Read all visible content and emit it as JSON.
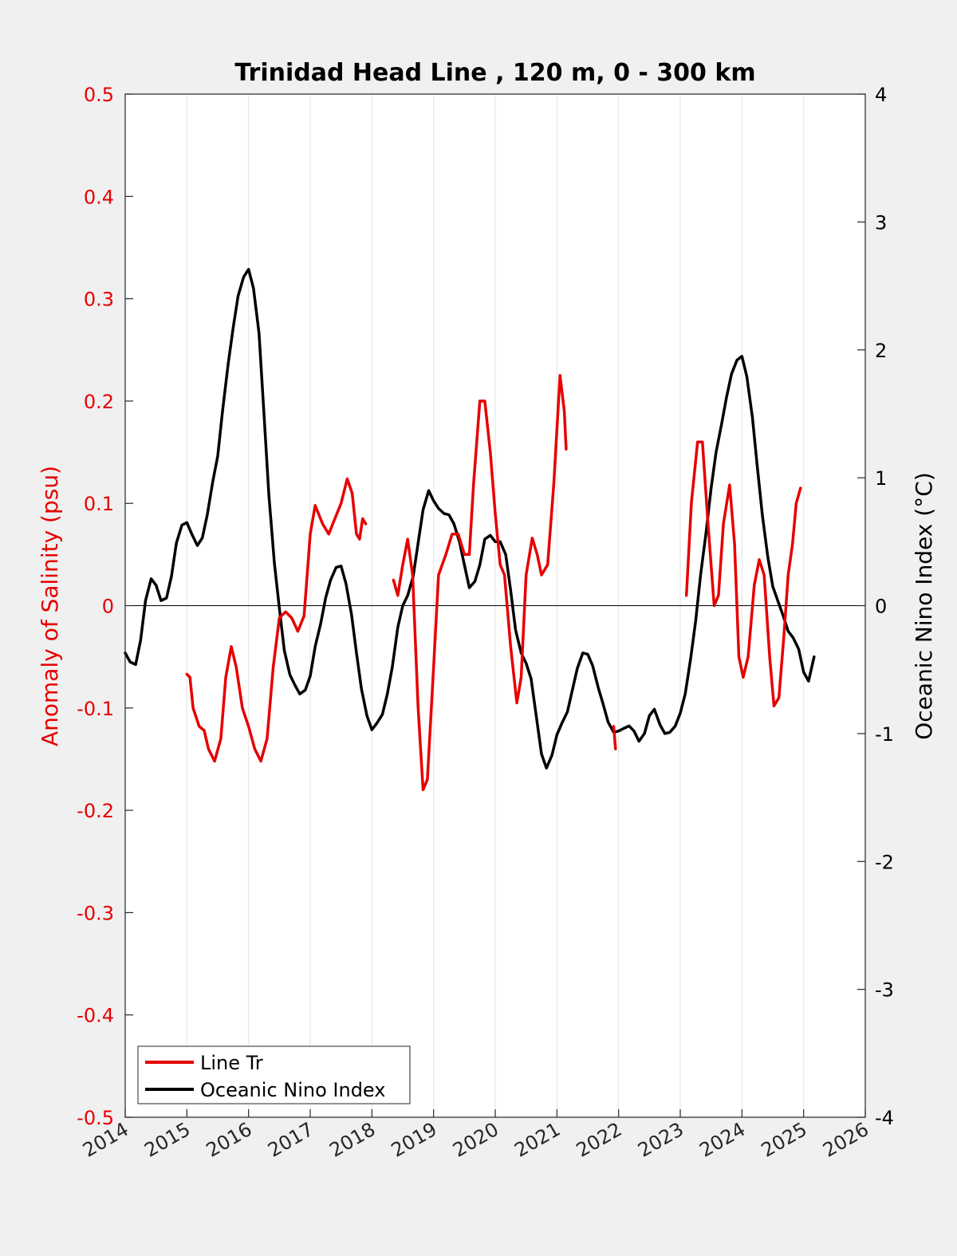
{
  "colors": {
    "salinity": "#e60000",
    "oni": "#000000",
    "left_axis": "#e60000",
    "right_axis": "#000000",
    "background": "#f0f0f0",
    "plot_bg": "#ffffff",
    "grid": "#e3e3e3"
  },
  "chart_data": {
    "type": "line",
    "title": "Trinidad Head Line , 120 m, 0 - 300 km",
    "xlabel": "",
    "ylabel_left": "Anomaly of Salinity (psu)",
    "ylabel_right": "Oceanic Nino Index (°C)",
    "xlim": [
      2014,
      2026
    ],
    "ylim_left": [
      -0.5,
      0.5
    ],
    "ylim_right": [
      -4,
      4
    ],
    "x_ticks": [
      "2014",
      "2015",
      "2016",
      "2017",
      "2018",
      "2019",
      "2020",
      "2021",
      "2022",
      "2023",
      "2024",
      "2025",
      "2026"
    ],
    "y_ticks_left": [
      "-0.5",
      "-0.4",
      "-0.3",
      "-0.2",
      "-0.1",
      "0",
      "0.1",
      "0.2",
      "0.3",
      "0.4",
      "0.5"
    ],
    "y_ticks_right": [
      "-4",
      "-3",
      "-2",
      "-1",
      "0",
      "1",
      "2",
      "3",
      "4"
    ],
    "grid": "vertical",
    "legend_position": "bottom-left",
    "series": [
      {
        "name": "Line Tr",
        "axis": "left",
        "segments": [
          [
            [
              2015.0,
              -0.067
            ],
            [
              2015.05,
              -0.07
            ],
            [
              2015.1,
              -0.1
            ],
            [
              2015.2,
              -0.118
            ],
            [
              2015.28,
              -0.122
            ],
            [
              2015.35,
              -0.14
            ],
            [
              2015.45,
              -0.152
            ],
            [
              2015.55,
              -0.13
            ],
            [
              2015.63,
              -0.07
            ],
            [
              2015.72,
              -0.04
            ],
            [
              2015.8,
              -0.06
            ],
            [
              2015.9,
              -0.1
            ],
            [
              2016.0,
              -0.118
            ],
            [
              2016.1,
              -0.14
            ],
            [
              2016.2,
              -0.152
            ],
            [
              2016.3,
              -0.13
            ],
            [
              2016.4,
              -0.06
            ],
            [
              2016.5,
              -0.012
            ],
            [
              2016.6,
              -0.006
            ],
            [
              2016.7,
              -0.012
            ],
            [
              2016.8,
              -0.025
            ],
            [
              2016.9,
              -0.01
            ],
            [
              2017.0,
              0.07
            ],
            [
              2017.08,
              0.098
            ],
            [
              2017.2,
              0.08
            ],
            [
              2017.3,
              0.07
            ],
            [
              2017.4,
              0.085
            ],
            [
              2017.5,
              0.1
            ],
            [
              2017.6,
              0.124
            ],
            [
              2017.68,
              0.11
            ],
            [
              2017.75,
              0.07
            ],
            [
              2017.8,
              0.065
            ],
            [
              2017.85,
              0.085
            ],
            [
              2017.9,
              0.08
            ]
          ],
          [
            [
              2018.35,
              0.025
            ],
            [
              2018.42,
              0.01
            ],
            [
              2018.5,
              0.04
            ],
            [
              2018.58,
              0.065
            ],
            [
              2018.66,
              0.03
            ],
            [
              2018.75,
              -0.1
            ],
            [
              2018.83,
              -0.18
            ],
            [
              2018.9,
              -0.17
            ],
            [
              2019.0,
              -0.06
            ],
            [
              2019.08,
              0.03
            ],
            [
              2019.2,
              0.05
            ],
            [
              2019.3,
              0.07
            ],
            [
              2019.4,
              0.07
            ],
            [
              2019.5,
              0.05
            ],
            [
              2019.58,
              0.05
            ],
            [
              2019.65,
              0.12
            ],
            [
              2019.75,
              0.2
            ],
            [
              2019.83,
              0.2
            ],
            [
              2019.92,
              0.15
            ],
            [
              2020.0,
              0.09
            ],
            [
              2020.08,
              0.04
            ],
            [
              2020.15,
              0.03
            ],
            [
              2020.25,
              -0.04
            ],
            [
              2020.35,
              -0.095
            ],
            [
              2020.42,
              -0.07
            ],
            [
              2020.5,
              0.03
            ],
            [
              2020.6,
              0.066
            ],
            [
              2020.68,
              0.05
            ],
            [
              2020.75,
              0.03
            ],
            [
              2020.85,
              0.04
            ],
            [
              2020.95,
              0.12
            ],
            [
              2021.05,
              0.225
            ],
            [
              2021.12,
              0.19
            ],
            [
              2021.15,
              0.153
            ]
          ],
          [
            [
              2021.92,
              -0.118
            ],
            [
              2021.95,
              -0.14
            ]
          ],
          [
            [
              2023.1,
              0.01
            ],
            [
              2023.18,
              0.1
            ],
            [
              2023.28,
              0.16
            ],
            [
              2023.36,
              0.16
            ],
            [
              2023.45,
              0.08
            ],
            [
              2023.55,
              0.0
            ],
            [
              2023.62,
              0.01
            ],
            [
              2023.7,
              0.08
            ],
            [
              2023.8,
              0.118
            ],
            [
              2023.88,
              0.06
            ],
            [
              2023.95,
              -0.05
            ],
            [
              2024.02,
              -0.07
            ],
            [
              2024.1,
              -0.05
            ],
            [
              2024.2,
              0.02
            ],
            [
              2024.28,
              0.045
            ],
            [
              2024.36,
              0.03
            ],
            [
              2024.45,
              -0.05
            ],
            [
              2024.52,
              -0.098
            ],
            [
              2024.6,
              -0.09
            ],
            [
              2024.68,
              -0.03
            ],
            [
              2024.75,
              0.03
            ],
            [
              2024.82,
              0.06
            ],
            [
              2024.88,
              0.1
            ],
            [
              2024.95,
              0.115
            ]
          ]
        ]
      },
      {
        "name": "Oceanic Nino Index",
        "axis": "right",
        "segments": [
          [
            [
              2014.0,
              -0.37
            ],
            [
              2014.08,
              -0.44
            ],
            [
              2014.17,
              -0.46
            ],
            [
              2014.25,
              -0.27
            ],
            [
              2014.33,
              0.04
            ],
            [
              2014.42,
              0.21
            ],
            [
              2014.5,
              0.16
            ],
            [
              2014.58,
              0.04
            ],
            [
              2014.67,
              0.06
            ],
            [
              2014.75,
              0.23
            ],
            [
              2014.83,
              0.49
            ],
            [
              2014.92,
              0.63
            ],
            [
              2015.0,
              0.65
            ],
            [
              2015.08,
              0.56
            ],
            [
              2015.17,
              0.47
            ],
            [
              2015.25,
              0.53
            ],
            [
              2015.33,
              0.71
            ],
            [
              2015.42,
              0.97
            ],
            [
              2015.5,
              1.17
            ],
            [
              2015.58,
              1.53
            ],
            [
              2015.67,
              1.89
            ],
            [
              2015.75,
              2.17
            ],
            [
              2015.83,
              2.42
            ],
            [
              2015.92,
              2.57
            ],
            [
              2016.0,
              2.63
            ],
            [
              2016.08,
              2.48
            ],
            [
              2016.17,
              2.13
            ],
            [
              2016.25,
              1.5
            ],
            [
              2016.33,
              0.86
            ],
            [
              2016.42,
              0.33
            ],
            [
              2016.5,
              -0.02
            ],
            [
              2016.58,
              -0.35
            ],
            [
              2016.67,
              -0.54
            ],
            [
              2016.75,
              -0.62
            ],
            [
              2016.83,
              -0.69
            ],
            [
              2016.92,
              -0.66
            ],
            [
              2017.0,
              -0.55
            ],
            [
              2017.08,
              -0.32
            ],
            [
              2017.17,
              -0.14
            ],
            [
              2017.25,
              0.06
            ],
            [
              2017.33,
              0.2
            ],
            [
              2017.42,
              0.3
            ],
            [
              2017.5,
              0.31
            ],
            [
              2017.58,
              0.17
            ],
            [
              2017.67,
              -0.07
            ],
            [
              2017.75,
              -0.37
            ],
            [
              2017.83,
              -0.65
            ],
            [
              2017.92,
              -0.86
            ],
            [
              2018.0,
              -0.97
            ],
            [
              2018.08,
              -0.92
            ],
            [
              2018.17,
              -0.85
            ],
            [
              2018.25,
              -0.69
            ],
            [
              2018.33,
              -0.48
            ],
            [
              2018.42,
              -0.17
            ],
            [
              2018.5,
              0.0
            ],
            [
              2018.58,
              0.08
            ],
            [
              2018.67,
              0.23
            ],
            [
              2018.75,
              0.49
            ],
            [
              2018.83,
              0.75
            ],
            [
              2018.92,
              0.9
            ],
            [
              2019.0,
              0.82
            ],
            [
              2019.08,
              0.76
            ],
            [
              2019.17,
              0.72
            ],
            [
              2019.25,
              0.71
            ],
            [
              2019.33,
              0.64
            ],
            [
              2019.42,
              0.5
            ],
            [
              2019.5,
              0.32
            ],
            [
              2019.58,
              0.14
            ],
            [
              2019.67,
              0.19
            ],
            [
              2019.75,
              0.32
            ],
            [
              2019.83,
              0.52
            ],
            [
              2019.92,
              0.55
            ],
            [
              2020.0,
              0.5
            ],
            [
              2020.08,
              0.5
            ],
            [
              2020.17,
              0.4
            ],
            [
              2020.25,
              0.12
            ],
            [
              2020.33,
              -0.19
            ],
            [
              2020.42,
              -0.37
            ],
            [
              2020.5,
              -0.45
            ],
            [
              2020.58,
              -0.57
            ],
            [
              2020.67,
              -0.88
            ],
            [
              2020.75,
              -1.16
            ],
            [
              2020.83,
              -1.27
            ],
            [
              2020.92,
              -1.17
            ],
            [
              2021.0,
              -1.01
            ],
            [
              2021.08,
              -0.92
            ],
            [
              2021.17,
              -0.83
            ],
            [
              2021.25,
              -0.66
            ],
            [
              2021.33,
              -0.49
            ],
            [
              2021.42,
              -0.37
            ],
            [
              2021.5,
              -0.38
            ],
            [
              2021.58,
              -0.47
            ],
            [
              2021.67,
              -0.64
            ],
            [
              2021.75,
              -0.77
            ],
            [
              2021.83,
              -0.91
            ],
            [
              2021.92,
              -0.99
            ],
            [
              2022.0,
              -0.98
            ],
            [
              2022.08,
              -0.96
            ],
            [
              2022.17,
              -0.94
            ],
            [
              2022.25,
              -0.98
            ],
            [
              2022.33,
              -1.06
            ],
            [
              2022.42,
              -1.0
            ],
            [
              2022.5,
              -0.86
            ],
            [
              2022.58,
              -0.81
            ],
            [
              2022.67,
              -0.93
            ],
            [
              2022.75,
              -1.0
            ],
            [
              2022.83,
              -0.99
            ],
            [
              2022.92,
              -0.94
            ],
            [
              2023.0,
              -0.84
            ],
            [
              2023.08,
              -0.69
            ],
            [
              2023.17,
              -0.41
            ],
            [
              2023.25,
              -0.12
            ],
            [
              2023.33,
              0.24
            ],
            [
              2023.42,
              0.58
            ],
            [
              2023.5,
              0.92
            ],
            [
              2023.58,
              1.2
            ],
            [
              2023.67,
              1.42
            ],
            [
              2023.75,
              1.63
            ],
            [
              2023.83,
              1.81
            ],
            [
              2023.92,
              1.92
            ],
            [
              2024.0,
              1.95
            ],
            [
              2024.08,
              1.79
            ],
            [
              2024.17,
              1.47
            ],
            [
              2024.25,
              1.08
            ],
            [
              2024.33,
              0.71
            ],
            [
              2024.42,
              0.38
            ],
            [
              2024.5,
              0.15
            ],
            [
              2024.58,
              0.04
            ],
            [
              2024.67,
              -0.08
            ],
            [
              2024.75,
              -0.2
            ],
            [
              2024.83,
              -0.25
            ],
            [
              2024.92,
              -0.34
            ],
            [
              2025.0,
              -0.52
            ],
            [
              2025.08,
              -0.59
            ],
            [
              2025.17,
              -0.4
            ]
          ]
        ]
      }
    ]
  }
}
